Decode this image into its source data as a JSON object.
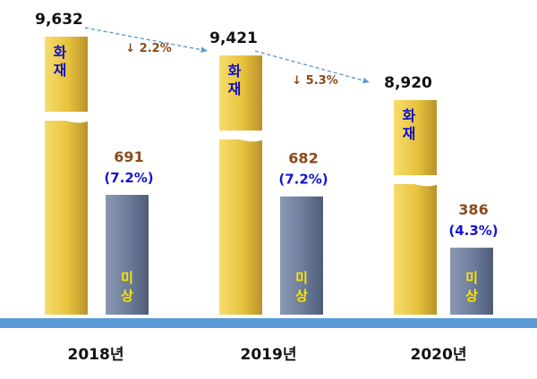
{
  "chart_data": {
    "type": "bar",
    "categories": [
      "2018년",
      "2019년",
      "2020년"
    ],
    "series": [
      {
        "label": "화재",
        "values": [
          9632,
          9421,
          8920
        ],
        "value_labels": [
          "9,632",
          "9,421",
          "8,920"
        ],
        "color": "#E8C43A"
      },
      {
        "label": "미상",
        "values": [
          691,
          682,
          386
        ],
        "value_labels": [
          "691",
          "682",
          "386"
        ],
        "percent_labels": [
          "(7.2%)",
          "(7.2%)",
          "(4.3%)"
        ],
        "color": "#6E7E9C"
      }
    ],
    "changes": [
      {
        "from": "2018년",
        "to": "2019년",
        "label": "↓ 2.2%"
      },
      {
        "from": "2019년",
        "to": "2020년",
        "label": "↓ 5.3%"
      }
    ],
    "axis_break": true,
    "legend": "none",
    "grid": false,
    "colors": {
      "fire_bar": "#E8C43A",
      "unknown_bar": "#6E7E9C",
      "baseline": "#5B9BD5",
      "fire_label_text": "#1010C0",
      "unknown_label_text": "#FFE400",
      "unknown_value_text": "#8B4A1A",
      "percent_text": "#1515D0",
      "change_text": "#8B4A1A",
      "arrow": "#5B9BD5"
    }
  }
}
